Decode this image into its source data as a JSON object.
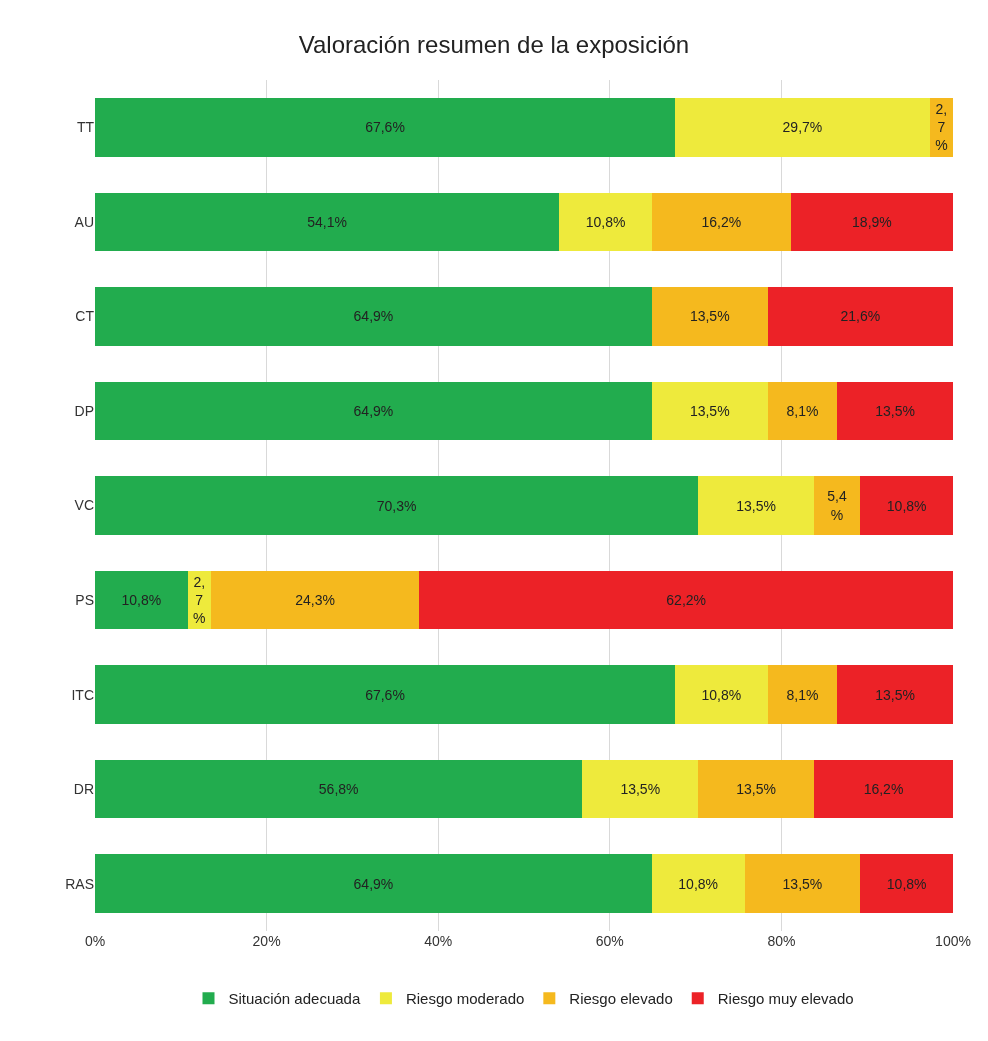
{
  "chart_data": {
    "type": "bar",
    "title": "Valoración resumen de la exposición",
    "orientation": "horizontal",
    "stacked": true,
    "categories": [
      "TT",
      "AU",
      "CT",
      "DP",
      "VC",
      "PS",
      "ITC",
      "DR",
      "RAS"
    ],
    "series": [
      {
        "name": "Situación adecuada",
        "color": "#22ac4e",
        "values": [
          67.6,
          54.1,
          64.9,
          64.9,
          70.3,
          10.8,
          67.6,
          56.8,
          64.9
        ],
        "value_labels": [
          "67,6%",
          "54,1%",
          "64,9%",
          "64,9%",
          "70,3%",
          "10,8%",
          "67,6%",
          "56,8%",
          "64,9%"
        ]
      },
      {
        "name": "Riesgo moderado",
        "color": "#eeea3c",
        "values": [
          29.7,
          10.8,
          null,
          13.5,
          13.5,
          2.7,
          10.8,
          13.5,
          10.8
        ],
        "value_labels": [
          "29,7%",
          "10,8%",
          null,
          "13,5%",
          "13,5%",
          "2,7%",
          "10,8%",
          "13,5%",
          "10,8%"
        ]
      },
      {
        "name": "Riesgo elevado",
        "color": "#f5b91e",
        "values": [
          2.7,
          16.2,
          13.5,
          8.1,
          5.4,
          24.3,
          8.1,
          13.5,
          13.5
        ],
        "value_labels": [
          "2,7%",
          "16,2%",
          "13,5%",
          "8,1%",
          "5,4%",
          "24,3%",
          "8,1%",
          "13,5%",
          "13,5%"
        ]
      },
      {
        "name": "Riesgo muy elevado",
        "color": "#ec2227",
        "values": [
          null,
          18.9,
          21.6,
          13.5,
          10.8,
          62.2,
          13.5,
          16.2,
          10.8
        ],
        "value_labels": [
          null,
          "18,9%",
          "21,6%",
          "13,5%",
          "10,8%",
          "62,2%",
          "13,5%",
          "16,2%",
          "10,8%"
        ]
      }
    ],
    "xlim": [
      0,
      100
    ],
    "xticks": [
      {
        "value": 0,
        "label": "0%"
      },
      {
        "value": 20,
        "label": "20%"
      },
      {
        "value": 40,
        "label": "40%"
      },
      {
        "value": 60,
        "label": "60%"
      },
      {
        "value": 80,
        "label": "80%"
      },
      {
        "value": 100,
        "label": "100%"
      }
    ],
    "grid": "x",
    "legend": "bottom"
  }
}
